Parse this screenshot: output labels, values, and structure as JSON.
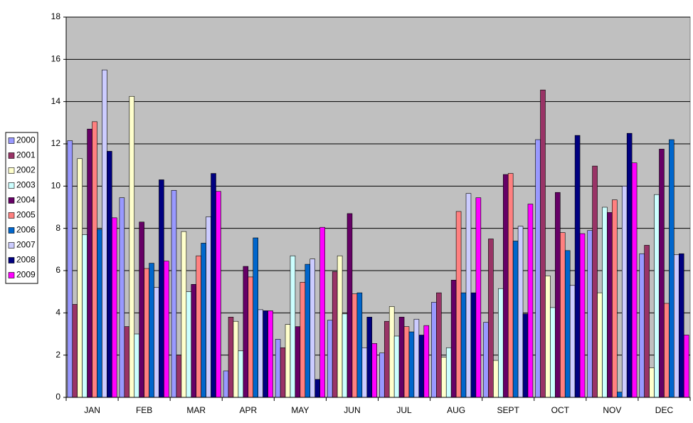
{
  "chart_data": {
    "type": "bar",
    "categories": [
      "JAN",
      "FEB",
      "MAR",
      "APR",
      "MAY",
      "JUN",
      "JUL",
      "AUG",
      "SEPT",
      "OCT",
      "NOV",
      "DEC"
    ],
    "ylim": [
      0,
      18
    ],
    "yticks": [
      0,
      2,
      4,
      6,
      8,
      10,
      12,
      14,
      16,
      18
    ],
    "grid": true,
    "legend": "left",
    "series": [
      {
        "name": "2000",
        "color": "#9999ff",
        "values": [
          12.15,
          9.45,
          9.8,
          1.25,
          2.75,
          3.65,
          2.1,
          4.5,
          3.55,
          12.2,
          7.9,
          6.8
        ]
      },
      {
        "name": "2001",
        "color": "#993366",
        "values": [
          4.4,
          3.35,
          2.0,
          3.8,
          2.35,
          5.95,
          3.6,
          4.95,
          7.5,
          14.55,
          10.95,
          7.2
        ]
      },
      {
        "name": "2002",
        "color": "#ffffcc",
        "values": [
          11.3,
          14.25,
          7.85,
          3.6,
          3.45,
          6.7,
          4.3,
          1.9,
          1.75,
          5.75,
          4.95,
          1.4
        ]
      },
      {
        "name": "2003",
        "color": "#ccffff",
        "values": [
          7.7,
          3.0,
          5.0,
          2.2,
          6.7,
          3.95,
          2.9,
          2.35,
          5.15,
          4.25,
          9.0,
          9.6
        ]
      },
      {
        "name": "2004",
        "color": "#660066",
        "values": [
          12.7,
          8.3,
          5.35,
          6.2,
          3.35,
          8.7,
          3.8,
          5.55,
          10.55,
          9.7,
          8.75,
          11.75
        ]
      },
      {
        "name": "2005",
        "color": "#ff8080",
        "values": [
          13.05,
          6.1,
          6.7,
          5.7,
          5.45,
          4.9,
          3.35,
          8.8,
          10.6,
          7.8,
          9.35,
          4.45
        ]
      },
      {
        "name": "2006",
        "color": "#0066cc",
        "values": [
          7.95,
          6.35,
          7.3,
          7.55,
          6.3,
          4.95,
          3.1,
          4.95,
          7.4,
          6.95,
          0.25,
          12.2
        ]
      },
      {
        "name": "2007",
        "color": "#ccccff",
        "values": [
          15.5,
          5.2,
          8.55,
          4.15,
          6.55,
          2.35,
          3.7,
          9.65,
          8.1,
          5.3,
          10.0,
          6.75
        ]
      },
      {
        "name": "2008",
        "color": "#000080",
        "values": [
          11.65,
          10.3,
          10.6,
          4.1,
          0.85,
          3.8,
          2.95,
          4.95,
          3.95,
          12.4,
          12.5,
          6.8
        ]
      },
      {
        "name": "2009",
        "color": "#ff00ff",
        "values": [
          8.5,
          6.45,
          9.75,
          4.1,
          8.05,
          2.55,
          3.4,
          9.45,
          9.15,
          7.75,
          11.1,
          2.95
        ]
      }
    ]
  }
}
